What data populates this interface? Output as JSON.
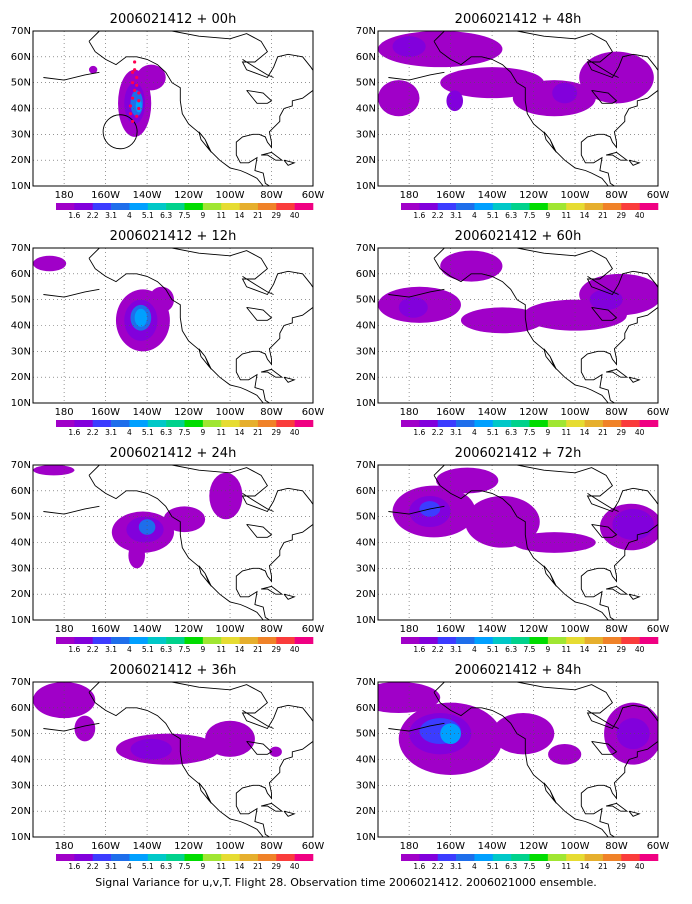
{
  "figure": {
    "caption": "Signal Variance for u,v,T. Flight 28. Observation time 2006021412. 2006021000 ensemble."
  },
  "axes": {
    "lat_labels": [
      "70N",
      "60N",
      "50N",
      "40N",
      "30N",
      "20N",
      "10N"
    ],
    "lon_labels": [
      "180",
      "160W",
      "140W",
      "120W",
      "100W",
      "80W",
      "60W"
    ],
    "lon_range_deg": [
      -195,
      -60
    ],
    "lat_range_deg": [
      10,
      70
    ],
    "grid": "dotted"
  },
  "colorbar": {
    "levels": [
      "1.6",
      "2.2",
      "3.1",
      "4",
      "5.1",
      "6.3",
      "7.5",
      "9",
      "11",
      "14",
      "21",
      "29",
      "40"
    ],
    "colors": [
      "#a000c8",
      "#8200dc",
      "#3c3cff",
      "#1e6eeb",
      "#00a0ff",
      "#00c8c8",
      "#00d28c",
      "#00dc00",
      "#a0e632",
      "#e6dc32",
      "#e6af2d",
      "#f08228",
      "#fa3c3c",
      "#f00082"
    ]
  },
  "colors": {
    "fill_low": "#a000c8",
    "fill_mid": "#8200dc",
    "fill_blue": "#3c3cff",
    "fill_cyan": "#00a0ff",
    "coast": "#000000",
    "track": "#ff0050"
  },
  "panels": [
    {
      "title": "2006021412 + 00h",
      "extras": [
        "flight-track",
        "observation-circle"
      ],
      "blobs": [
        {
          "lon": -146,
          "lat": 42,
          "rx": 8,
          "ry": 13,
          "level": 0
        },
        {
          "lon": -138,
          "lat": 52,
          "rx": 7,
          "ry": 5,
          "level": 0
        },
        {
          "lon": -166,
          "lat": 55,
          "rx": 2,
          "ry": 1.5,
          "level": 0
        },
        {
          "lon": -146,
          "lat": 42,
          "rx": 5,
          "ry": 8,
          "level": 1
        },
        {
          "lon": -145,
          "lat": 42,
          "rx": 3,
          "ry": 5,
          "level": 3
        },
        {
          "lon": -144,
          "lat": 41,
          "rx": 1.5,
          "ry": 2.5,
          "level": 4
        }
      ]
    },
    {
      "title": "2006021412 + 48h",
      "extras": [],
      "blobs": [
        {
          "lon": -165,
          "lat": 63,
          "rx": 30,
          "ry": 7,
          "level": 0
        },
        {
          "lon": -185,
          "lat": 44,
          "rx": 10,
          "ry": 7,
          "level": 0
        },
        {
          "lon": -140,
          "lat": 50,
          "rx": 25,
          "ry": 6,
          "level": 0
        },
        {
          "lon": -110,
          "lat": 44,
          "rx": 20,
          "ry": 7,
          "level": 0
        },
        {
          "lon": -80,
          "lat": 52,
          "rx": 18,
          "ry": 10,
          "level": 0
        },
        {
          "lon": -158,
          "lat": 43,
          "rx": 4,
          "ry": 4,
          "level": 1
        },
        {
          "lon": -180,
          "lat": 64,
          "rx": 8,
          "ry": 4,
          "level": 1
        },
        {
          "lon": -105,
          "lat": 46,
          "rx": 6,
          "ry": 4,
          "level": 1
        }
      ]
    },
    {
      "title": "2006021412 + 12h",
      "extras": [],
      "blobs": [
        {
          "lon": -187,
          "lat": 64,
          "rx": 8,
          "ry": 3,
          "level": 0
        },
        {
          "lon": -142,
          "lat": 42,
          "rx": 13,
          "ry": 12,
          "level": 0
        },
        {
          "lon": -133,
          "lat": 50,
          "rx": 6,
          "ry": 5,
          "level": 0
        },
        {
          "lon": -143,
          "lat": 42,
          "rx": 8,
          "ry": 8,
          "level": 1
        },
        {
          "lon": -143,
          "lat": 43,
          "rx": 5,
          "ry": 5,
          "level": 3
        },
        {
          "lon": -143,
          "lat": 43,
          "rx": 3,
          "ry": 3.5,
          "level": 4
        }
      ]
    },
    {
      "title": "2006021412 + 60h",
      "extras": [],
      "blobs": [
        {
          "lon": -150,
          "lat": 63,
          "rx": 15,
          "ry": 6,
          "level": 0
        },
        {
          "lon": -175,
          "lat": 48,
          "rx": 20,
          "ry": 7,
          "level": 0
        },
        {
          "lon": -135,
          "lat": 42,
          "rx": 20,
          "ry": 5,
          "level": 0
        },
        {
          "lon": -100,
          "lat": 44,
          "rx": 25,
          "ry": 6,
          "level": 0
        },
        {
          "lon": -78,
          "lat": 52,
          "rx": 20,
          "ry": 8,
          "level": 0
        },
        {
          "lon": -178,
          "lat": 47,
          "rx": 7,
          "ry": 4,
          "level": 1
        },
        {
          "lon": -85,
          "lat": 50,
          "rx": 8,
          "ry": 4,
          "level": 1
        }
      ]
    },
    {
      "title": "2006021412 + 24h",
      "extras": [],
      "blobs": [
        {
          "lon": -185,
          "lat": 68,
          "rx": 10,
          "ry": 2,
          "level": 0
        },
        {
          "lon": -142,
          "lat": 44,
          "rx": 15,
          "ry": 8,
          "level": 0
        },
        {
          "lon": -122,
          "lat": 49,
          "rx": 10,
          "ry": 5,
          "level": 0
        },
        {
          "lon": -102,
          "lat": 58,
          "rx": 8,
          "ry": 9,
          "level": 0
        },
        {
          "lon": -145,
          "lat": 35,
          "rx": 4,
          "ry": 5,
          "level": 0
        },
        {
          "lon": -141,
          "lat": 45,
          "rx": 9,
          "ry": 5,
          "level": 1
        },
        {
          "lon": -140,
          "lat": 46,
          "rx": 4,
          "ry": 3,
          "level": 3
        }
      ]
    },
    {
      "title": "2006021412 + 72h",
      "extras": [],
      "blobs": [
        {
          "lon": -168,
          "lat": 52,
          "rx": 20,
          "ry": 10,
          "level": 0
        },
        {
          "lon": -135,
          "lat": 48,
          "rx": 18,
          "ry": 10,
          "level": 0
        },
        {
          "lon": -152,
          "lat": 64,
          "rx": 15,
          "ry": 5,
          "level": 0
        },
        {
          "lon": -110,
          "lat": 40,
          "rx": 20,
          "ry": 4,
          "level": 0
        },
        {
          "lon": -73,
          "lat": 46,
          "rx": 15,
          "ry": 9,
          "level": 0
        },
        {
          "lon": -170,
          "lat": 52,
          "rx": 10,
          "ry": 6,
          "level": 1
        },
        {
          "lon": -170,
          "lat": 53,
          "rx": 5,
          "ry": 3,
          "level": 2
        },
        {
          "lon": -72,
          "lat": 47,
          "rx": 10,
          "ry": 6,
          "level": 1
        }
      ]
    },
    {
      "title": "2006021412 + 36h",
      "extras": [],
      "blobs": [
        {
          "lon": -180,
          "lat": 63,
          "rx": 15,
          "ry": 7,
          "level": 0
        },
        {
          "lon": -170,
          "lat": 52,
          "rx": 5,
          "ry": 5,
          "level": 0
        },
        {
          "lon": -130,
          "lat": 44,
          "rx": 25,
          "ry": 6,
          "level": 0
        },
        {
          "lon": -100,
          "lat": 48,
          "rx": 12,
          "ry": 7,
          "level": 0
        },
        {
          "lon": -78,
          "lat": 43,
          "rx": 3,
          "ry": 2,
          "level": 0
        },
        {
          "lon": -138,
          "lat": 44,
          "rx": 10,
          "ry": 4,
          "level": 1
        }
      ]
    },
    {
      "title": "2006021412 + 84h",
      "extras": [],
      "blobs": [
        {
          "lon": -185,
          "lat": 64,
          "rx": 20,
          "ry": 6,
          "level": 0
        },
        {
          "lon": -160,
          "lat": 48,
          "rx": 25,
          "ry": 14,
          "level": 0
        },
        {
          "lon": -125,
          "lat": 50,
          "rx": 15,
          "ry": 8,
          "level": 0
        },
        {
          "lon": -105,
          "lat": 42,
          "rx": 8,
          "ry": 4,
          "level": 0
        },
        {
          "lon": -72,
          "lat": 50,
          "rx": 14,
          "ry": 12,
          "level": 0
        },
        {
          "lon": -165,
          "lat": 50,
          "rx": 15,
          "ry": 8,
          "level": 1
        },
        {
          "lon": -165,
          "lat": 51,
          "rx": 10,
          "ry": 5,
          "level": 2
        },
        {
          "lon": -160,
          "lat": 50,
          "rx": 5,
          "ry": 4,
          "level": 4
        },
        {
          "lon": -72,
          "lat": 50,
          "rx": 8,
          "ry": 6,
          "level": 1
        }
      ]
    }
  ]
}
